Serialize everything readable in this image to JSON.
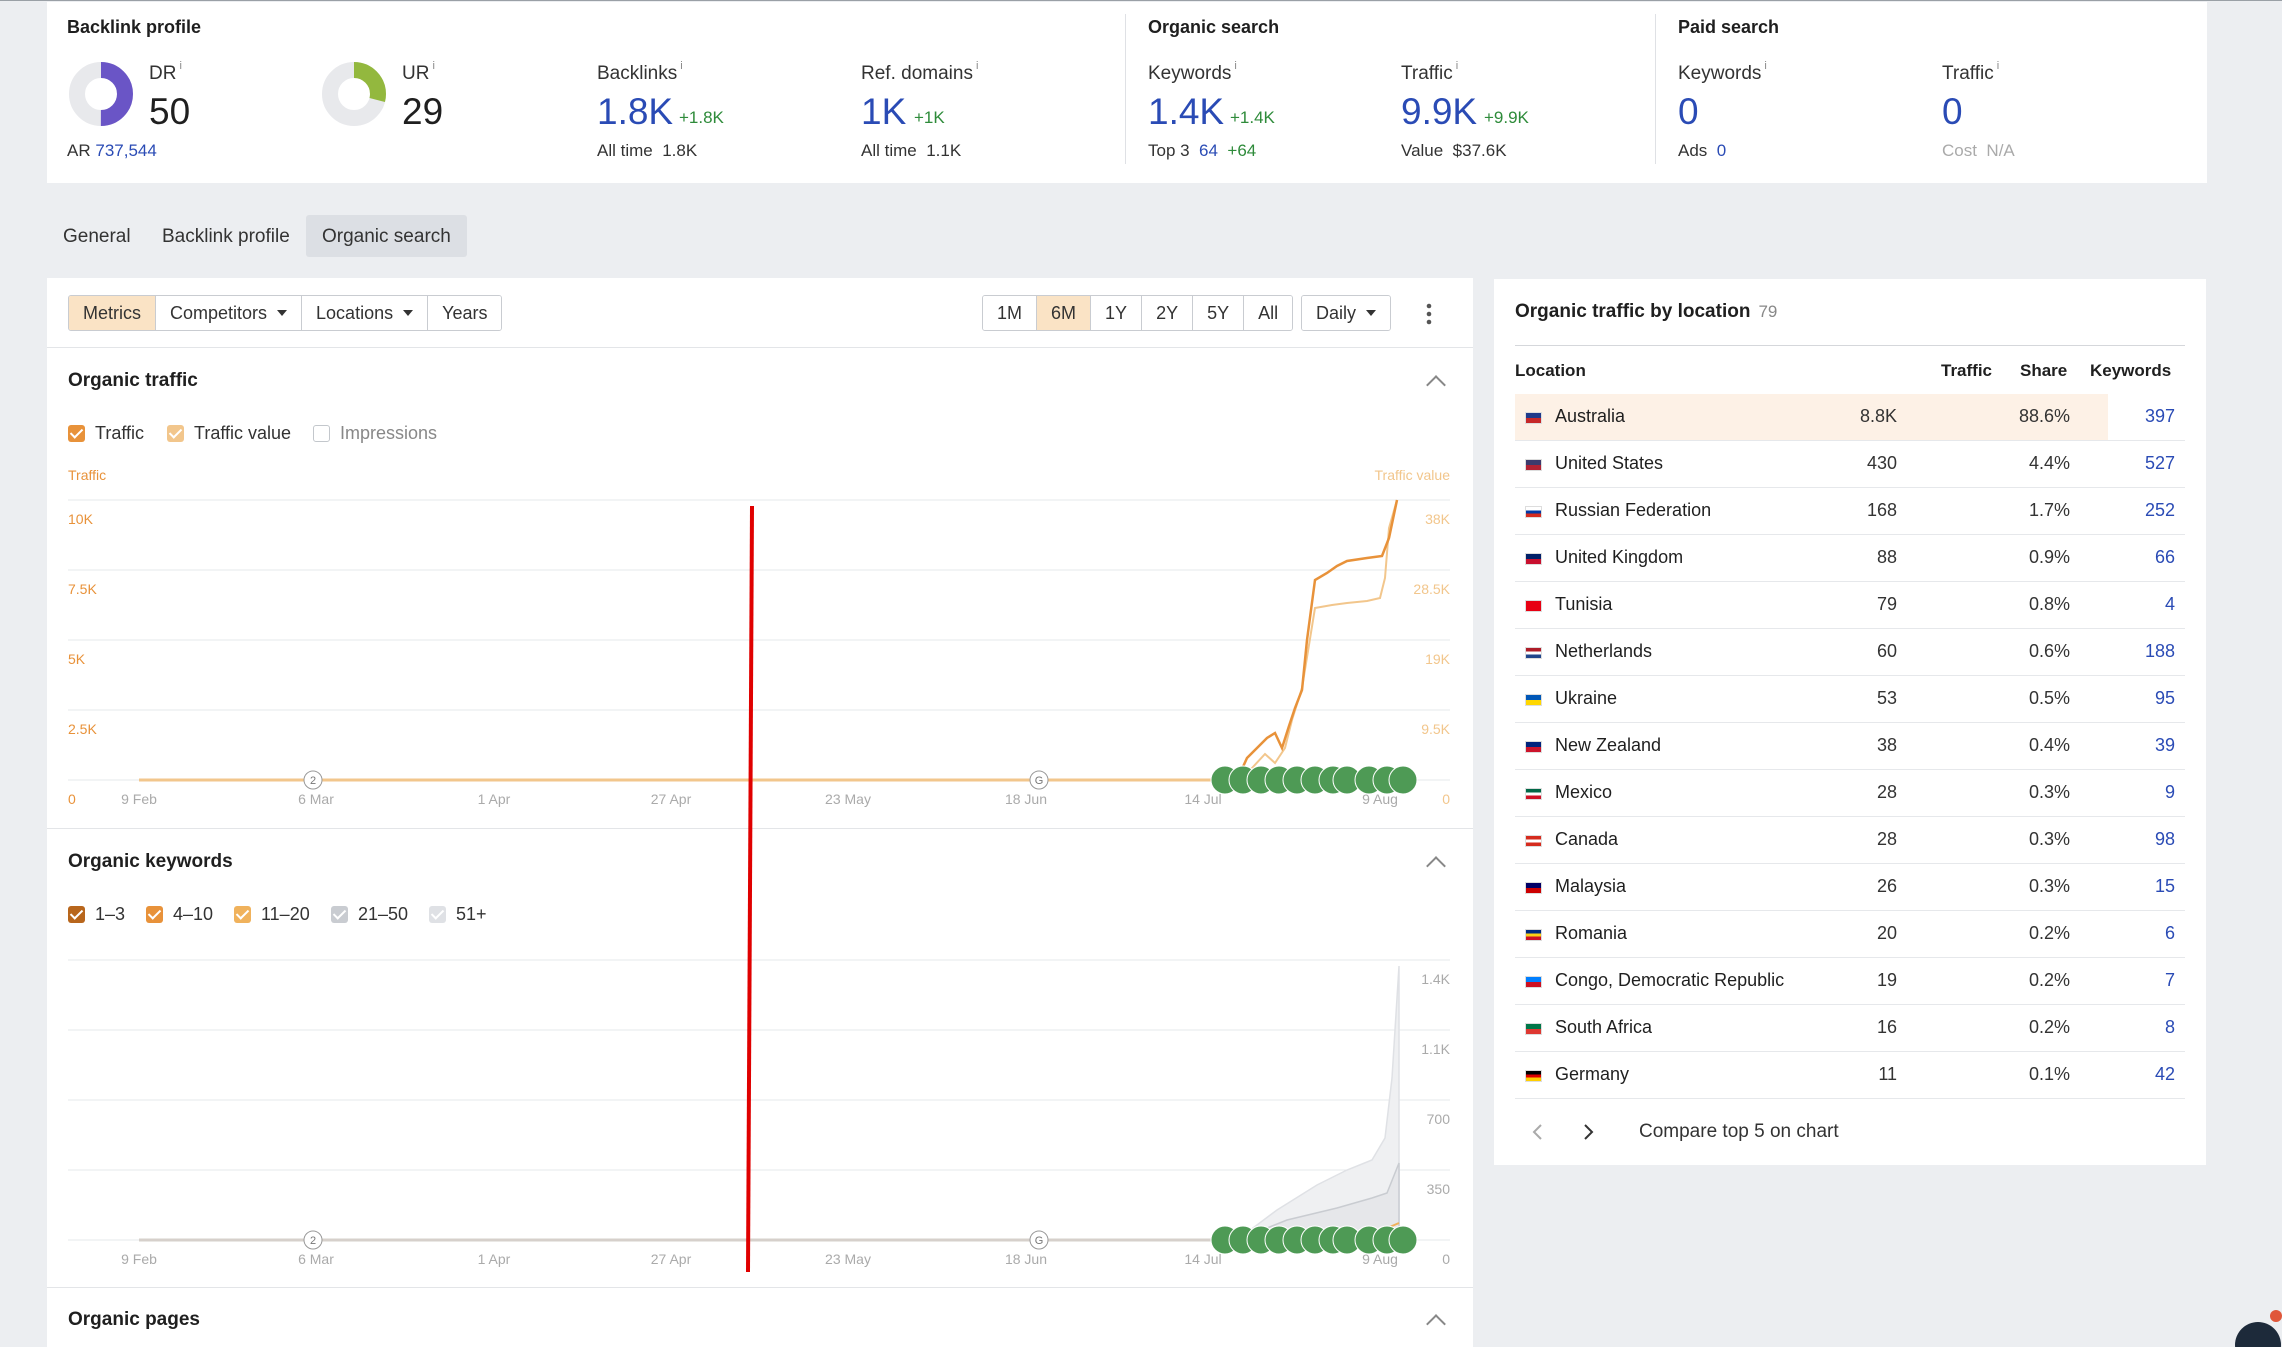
{
  "summary": {
    "backlink_profile": {
      "title": "Backlink profile",
      "dr": {
        "label": "DR",
        "value": "50",
        "donut_fraction": 0.5
      },
      "ur": {
        "label": "UR",
        "value": "29",
        "donut_fraction": 0.29
      },
      "ar": {
        "label": "AR",
        "value": "737,544"
      },
      "backlinks": {
        "label": "Backlinks",
        "value": "1.8K",
        "delta": "+1.8K",
        "sub_label": "All time",
        "sub_value": "1.8K"
      },
      "ref_domains": {
        "label": "Ref. domains",
        "value": "1K",
        "delta": "+1K",
        "sub_label": "All time",
        "sub_value": "1.1K"
      }
    },
    "organic_search": {
      "title": "Organic search",
      "keywords": {
        "label": "Keywords",
        "value": "1.4K",
        "delta": "+1.4K",
        "sub_label": "Top 3",
        "sub_value": "64",
        "sub_delta": "+64"
      },
      "traffic": {
        "label": "Traffic",
        "value": "9.9K",
        "delta": "+9.9K",
        "sub_label": "Value",
        "sub_value": "$37.6K"
      }
    },
    "paid_search": {
      "title": "Paid search",
      "keywords": {
        "label": "Keywords",
        "value": "0",
        "sub_label": "Ads",
        "sub_value": "0"
      },
      "traffic": {
        "label": "Traffic",
        "value": "0",
        "sub_label": "Cost",
        "sub_value": "N/A"
      }
    },
    "info_mark": "i"
  },
  "tabs": [
    "General",
    "Backlink profile",
    "Organic search"
  ],
  "active_tab": "Organic search",
  "toolbar": {
    "left": [
      "Metrics",
      "Competitors",
      "Locations",
      "Years"
    ],
    "ranges": [
      "1M",
      "6M",
      "1Y",
      "2Y",
      "5Y",
      "All"
    ],
    "active_range": "6M",
    "interval": "Daily"
  },
  "organic_traffic": {
    "title": "Organic traffic",
    "checkboxes": [
      {
        "label": "Traffic",
        "checked": true,
        "color": "#e8923a"
      },
      {
        "label": "Traffic value",
        "checked": true,
        "color": "#f2c68c"
      },
      {
        "label": "Impressions",
        "checked": false
      }
    ],
    "left_axis_title": "Traffic",
    "right_axis_title": "Traffic value",
    "left_ticks": [
      "10K",
      "7.5K",
      "5K",
      "2.5K",
      "0"
    ],
    "right_ticks": [
      "38K",
      "28.5K",
      "19K",
      "9.5K",
      "0"
    ],
    "x_ticks": [
      "9 Feb",
      "6 Mar",
      "1 Apr",
      "27 Apr",
      "23 May",
      "18 Jun",
      "14 Jul",
      "9 Aug"
    ]
  },
  "organic_keywords": {
    "title": "Organic keywords",
    "checkboxes": [
      {
        "label": "1–3",
        "checked": true,
        "color": "#b8661c"
      },
      {
        "label": "4–10",
        "checked": true,
        "color": "#e8923a"
      },
      {
        "label": "11–20",
        "checked": true,
        "color": "#f0b25c"
      },
      {
        "label": "21–50",
        "checked": true,
        "color": "#c9ccd1"
      },
      {
        "label": "51+",
        "checked": true,
        "color": "#dfe1e5"
      }
    ],
    "right_ticks": [
      "1.4K",
      "1.1K",
      "700",
      "350",
      "0"
    ],
    "x_ticks": [
      "9 Feb",
      "6 Mar",
      "1 Apr",
      "27 Apr",
      "23 May",
      "18 Jun",
      "14 Jul",
      "9 Aug"
    ]
  },
  "organic_pages": {
    "title": "Organic pages"
  },
  "location_table": {
    "title": "Organic traffic by location",
    "count": "79",
    "headers": {
      "location": "Location",
      "traffic": "Traffic",
      "share": "Share",
      "keywords": "Keywords"
    },
    "rows": [
      {
        "location": "Australia",
        "traffic": "8.8K",
        "share": "88.6%",
        "keywords": "397",
        "flag": [
          "#1f3a8a",
          "#c62828"
        ]
      },
      {
        "location": "United States",
        "traffic": "430",
        "share": "4.4%",
        "keywords": "527",
        "flag": [
          "#3c3b6e",
          "#b22234"
        ]
      },
      {
        "location": "Russian Federation",
        "traffic": "168",
        "share": "1.7%",
        "keywords": "252",
        "flag": [
          "#ffffff",
          "#0039a6",
          "#d52b1e"
        ]
      },
      {
        "location": "United Kingdom",
        "traffic": "88",
        "share": "0.9%",
        "keywords": "66",
        "flag": [
          "#012169",
          "#c8102e"
        ]
      },
      {
        "location": "Tunisia",
        "traffic": "79",
        "share": "0.8%",
        "keywords": "4",
        "flag": [
          "#e70013"
        ]
      },
      {
        "location": "Netherlands",
        "traffic": "60",
        "share": "0.6%",
        "keywords": "188",
        "flag": [
          "#ae1c28",
          "#ffffff",
          "#21468b"
        ]
      },
      {
        "location": "Ukraine",
        "traffic": "53",
        "share": "0.5%",
        "keywords": "95",
        "flag": [
          "#0057b7",
          "#ffd700"
        ]
      },
      {
        "location": "New Zealand",
        "traffic": "38",
        "share": "0.4%",
        "keywords": "39",
        "flag": [
          "#00247d",
          "#cc142b"
        ]
      },
      {
        "location": "Mexico",
        "traffic": "28",
        "share": "0.3%",
        "keywords": "9",
        "flag": [
          "#006847",
          "#ffffff",
          "#ce1126"
        ]
      },
      {
        "location": "Canada",
        "traffic": "28",
        "share": "0.3%",
        "keywords": "98",
        "flag": [
          "#d52b1e",
          "#ffffff",
          "#d52b1e"
        ]
      },
      {
        "location": "Malaysia",
        "traffic": "26",
        "share": "0.3%",
        "keywords": "15",
        "flag": [
          "#010066",
          "#cc0001"
        ]
      },
      {
        "location": "Romania",
        "traffic": "20",
        "share": "0.2%",
        "keywords": "6",
        "flag": [
          "#002b7f",
          "#fcd116",
          "#ce1126"
        ]
      },
      {
        "location": "Congo, Democratic Republic",
        "traffic": "19",
        "share": "0.2%",
        "keywords": "7",
        "flag": [
          "#007fff",
          "#ce1021"
        ]
      },
      {
        "location": "South Africa",
        "traffic": "16",
        "share": "0.2%",
        "keywords": "8",
        "flag": [
          "#007749",
          "#de3831"
        ]
      },
      {
        "location": "Germany",
        "traffic": "11",
        "share": "0.1%",
        "keywords": "42",
        "flag": [
          "#000000",
          "#dd0000",
          "#ffce00"
        ]
      }
    ],
    "footer": {
      "compare_label": "Compare top 5 on chart"
    }
  },
  "annotation_markers": [
    "2",
    "G"
  ],
  "colors": {
    "traffic_line": "#e8923a",
    "traffic_value_line": "#f2c68c",
    "link_blue": "#2a4bb5",
    "delta_green": "#2e8b3a",
    "marker_green": "#4e9a55",
    "red_line": "#e00000",
    "highlight_row": "#fdf1e6"
  }
}
